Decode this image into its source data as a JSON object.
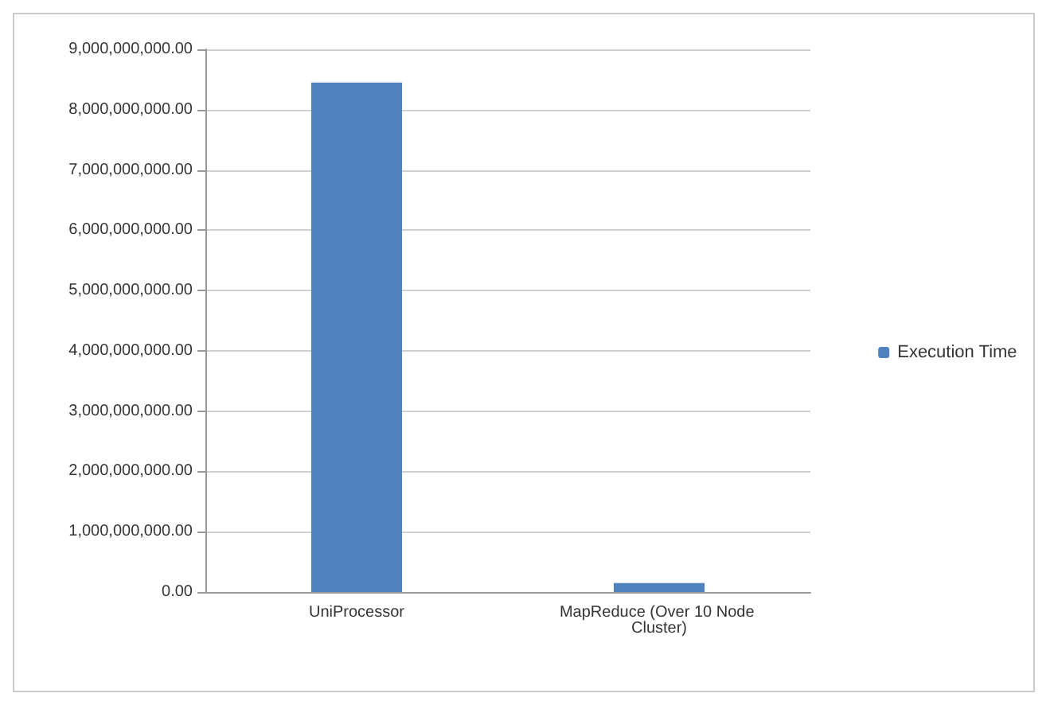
{
  "chart_data": {
    "type": "bar",
    "categories": [
      "UniProcessor",
      "MapReduce (Over 10 Node Cluster)"
    ],
    "series": [
      {
        "name": "Execution Time",
        "color": "#4f81bd",
        "values": [
          8450000000,
          150000000
        ]
      }
    ],
    "ylim": [
      0,
      9000000000
    ],
    "yticks": [
      {
        "value": 0,
        "label": "0.00"
      },
      {
        "value": 1000000000,
        "label": "1,000,000,000.00"
      },
      {
        "value": 2000000000,
        "label": "2,000,000,000.00"
      },
      {
        "value": 3000000000,
        "label": "3,000,000,000.00"
      },
      {
        "value": 4000000000,
        "label": "4,000,000,000.00"
      },
      {
        "value": 5000000000,
        "label": "5,000,000,000.00"
      },
      {
        "value": 6000000000,
        "label": "6,000,000,000.00"
      },
      {
        "value": 7000000000,
        "label": "7,000,000,000.00"
      },
      {
        "value": 8000000000,
        "label": "8,000,000,000.00"
      },
      {
        "value": 9000000000,
        "label": "9,000,000,000.00"
      }
    ],
    "grid": "y",
    "legend": "right"
  }
}
